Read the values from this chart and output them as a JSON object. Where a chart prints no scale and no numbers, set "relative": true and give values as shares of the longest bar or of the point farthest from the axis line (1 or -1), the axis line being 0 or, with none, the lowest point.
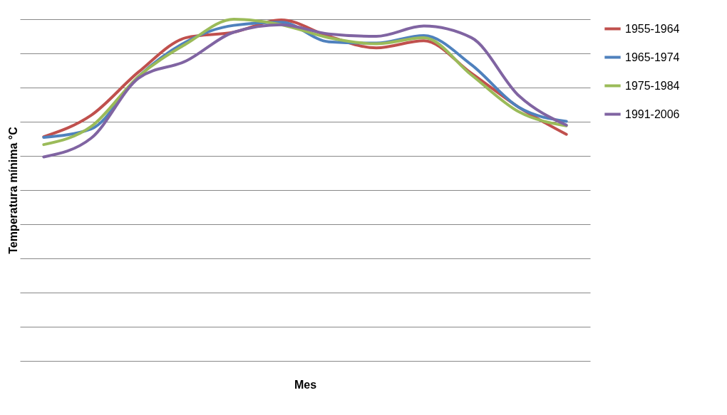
{
  "chart_data": {
    "type": "line",
    "relative": true,
    "xlabel": "Mes",
    "ylabel": "Temperatura mínima °C",
    "categories": [
      null,
      null,
      null,
      null,
      null,
      null,
      null,
      null,
      null,
      null,
      null,
      null
    ],
    "grid": "y",
    "legend": "right",
    "marker": "none",
    "line_style": "solid",
    "series": [
      {
        "name": "1955-1964",
        "color": "#c0504d",
        "values": [
          0.656,
          0.719,
          0.846,
          0.946,
          0.962,
          0.998,
          0.95,
          0.916,
          0.937,
          0.842,
          0.742,
          0.663
        ]
      },
      {
        "name": "1965-1974",
        "color": "#4f81bd",
        "values": [
          0.654,
          0.679,
          0.833,
          0.934,
          0.982,
          0.991,
          0.934,
          0.93,
          0.952,
          0.867,
          0.742,
          0.701
        ]
      },
      {
        "name": "1975-1984",
        "color": "#9bbb59",
        "values": [
          0.633,
          0.686,
          0.833,
          0.928,
          1,
          0.984,
          0.946,
          0.928,
          0.946,
          0.837,
          0.729,
          0.688
        ]
      },
      {
        "name": "1991-2006",
        "color": "#8064a2",
        "values": [
          0.597,
          0.652,
          0.828,
          0.878,
          0.962,
          0.984,
          0.957,
          0.95,
          0.98,
          0.946,
          0.776,
          0.69
        ]
      }
    ]
  }
}
